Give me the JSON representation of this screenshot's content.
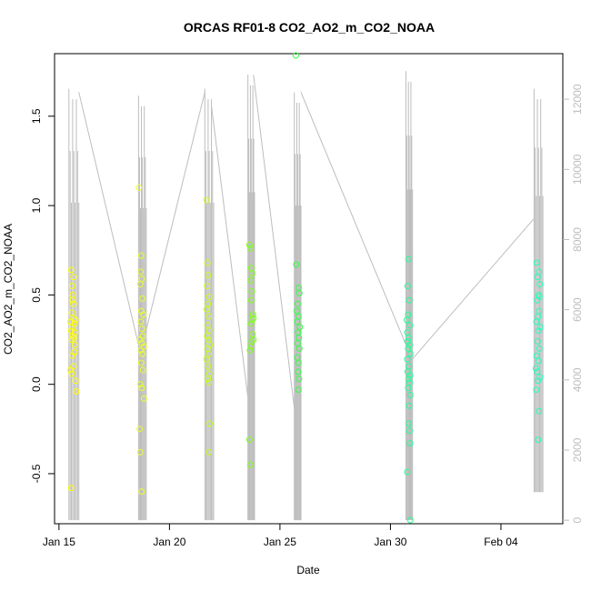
{
  "chart_data": {
    "type": "scatter",
    "title": "ORCAS RF01-8 CO2_AO2_m_CO2_NOAA",
    "xlabel": "Date",
    "ylabel": "CO2_AO2_m_CO2_NOAA",
    "x_ticks": [
      "Jan 15",
      "Jan 20",
      "Jan 25",
      "Jan 30",
      "Feb 04"
    ],
    "x_tick_days": [
      15,
      20,
      25,
      30,
      35
    ],
    "xlim_days": [
      14.8,
      37.8
    ],
    "y_ticks": [
      "-0.5",
      "0.0",
      "0.5",
      "1.0",
      "1.5"
    ],
    "y_tick_values": [
      -0.5,
      0.0,
      0.5,
      1.0,
      1.5
    ],
    "ylim": [
      -0.78,
      1.85
    ],
    "y2_ticks": [
      "0",
      "2000",
      "4000",
      "6000",
      "8000",
      "10000",
      "12000"
    ],
    "y2_tick_values": [
      0,
      2000,
      4000,
      6000,
      8000,
      10000,
      12000
    ],
    "y2lim": [
      -100,
      13300
    ],
    "grid": false,
    "legend": "none",
    "colors": {
      "series_flight_1": "#ffff00",
      "series_flight_2": "#eaff2c",
      "series_flight_3": "#c8ff1c",
      "series_flight_4": "#7fff1a",
      "series_flight_5": "#33ff44",
      "series_flight_6": "#22ff99",
      "series_flight_7": "#22ffbb",
      "altitude_line": "#bdbdbd"
    },
    "flights": [
      {
        "color": "#ffff00",
        "values": [
          {
            "x": 15.55,
            "y": 0.64
          },
          {
            "x": 15.6,
            "y": 0.55
          },
          {
            "x": 15.62,
            "y": 0.5
          },
          {
            "x": 15.65,
            "y": 0.45
          },
          {
            "x": 15.58,
            "y": 0.4
          },
          {
            "x": 15.66,
            "y": 0.37
          },
          {
            "x": 15.52,
            "y": 0.35
          },
          {
            "x": 15.7,
            "y": 0.34
          },
          {
            "x": 15.6,
            "y": 0.32
          },
          {
            "x": 15.55,
            "y": 0.3
          },
          {
            "x": 15.72,
            "y": 0.29
          },
          {
            "x": 15.62,
            "y": 0.27
          },
          {
            "x": 15.68,
            "y": 0.26
          },
          {
            "x": 15.58,
            "y": 0.25
          },
          {
            "x": 15.74,
            "y": 0.36
          },
          {
            "x": 15.7,
            "y": 0.18
          },
          {
            "x": 15.6,
            "y": 0.16
          },
          {
            "x": 15.65,
            "y": 0.1
          },
          {
            "x": 15.52,
            "y": 0.08
          },
          {
            "x": 15.58,
            "y": 0.06
          },
          {
            "x": 15.75,
            "y": 0.02
          },
          {
            "x": 15.78,
            "y": -0.04
          },
          {
            "x": 15.62,
            "y": 0.47
          },
          {
            "x": 15.66,
            "y": 0.6
          },
          {
            "x": 15.55,
            "y": -0.58
          },
          {
            "x": 15.72,
            "y": 0.22
          }
        ]
      },
      {
        "color": "#eaff2c",
        "values": [
          {
            "x": 18.62,
            "y": 1.1
          },
          {
            "x": 18.72,
            "y": 0.72
          },
          {
            "x": 18.7,
            "y": 0.63
          },
          {
            "x": 18.75,
            "y": 0.59
          },
          {
            "x": 18.68,
            "y": 0.56
          },
          {
            "x": 18.78,
            "y": 0.48
          },
          {
            "x": 18.72,
            "y": 0.41
          },
          {
            "x": 18.82,
            "y": 0.39
          },
          {
            "x": 18.7,
            "y": 0.35
          },
          {
            "x": 18.76,
            "y": 0.31
          },
          {
            "x": 18.8,
            "y": 0.27
          },
          {
            "x": 18.66,
            "y": 0.25
          },
          {
            "x": 18.74,
            "y": 0.23
          },
          {
            "x": 18.84,
            "y": 0.21
          },
          {
            "x": 18.7,
            "y": 0.19
          },
          {
            "x": 18.78,
            "y": 0.17
          },
          {
            "x": 18.72,
            "y": 0.12
          },
          {
            "x": 18.8,
            "y": 0.08
          },
          {
            "x": 18.68,
            "y": 0.0
          },
          {
            "x": 18.75,
            "y": -0.02
          },
          {
            "x": 18.85,
            "y": -0.08
          },
          {
            "x": 18.65,
            "y": -0.25
          },
          {
            "x": 18.68,
            "y": -0.38
          },
          {
            "x": 18.74,
            "y": -0.6
          }
        ]
      },
      {
        "color": "#c8ff1c",
        "values": [
          {
            "x": 21.68,
            "y": 1.03
          },
          {
            "x": 21.72,
            "y": 0.68
          },
          {
            "x": 21.75,
            "y": 0.61
          },
          {
            "x": 21.7,
            "y": 0.55
          },
          {
            "x": 21.8,
            "y": 0.49
          },
          {
            "x": 21.74,
            "y": 0.45
          },
          {
            "x": 21.68,
            "y": 0.42
          },
          {
            "x": 21.78,
            "y": 0.38
          },
          {
            "x": 21.72,
            "y": 0.33
          },
          {
            "x": 21.8,
            "y": 0.3
          },
          {
            "x": 21.7,
            "y": 0.27
          },
          {
            "x": 21.76,
            "y": 0.25
          },
          {
            "x": 21.82,
            "y": 0.22
          },
          {
            "x": 21.72,
            "y": 0.2
          },
          {
            "x": 21.78,
            "y": 0.17
          },
          {
            "x": 21.68,
            "y": 0.14
          },
          {
            "x": 21.75,
            "y": 0.1
          },
          {
            "x": 21.8,
            "y": 0.06
          },
          {
            "x": 21.74,
            "y": 0.03
          },
          {
            "x": 21.78,
            "y": 0.01
          },
          {
            "x": 21.82,
            "y": -0.22
          },
          {
            "x": 21.78,
            "y": -0.38
          }
        ]
      },
      {
        "color": "#7fff1a",
        "values": [
          {
            "x": 23.62,
            "y": 0.78
          },
          {
            "x": 23.66,
            "y": 0.76
          },
          {
            "x": 23.7,
            "y": 0.65
          },
          {
            "x": 23.75,
            "y": 0.62
          },
          {
            "x": 23.68,
            "y": 0.58
          },
          {
            "x": 23.72,
            "y": 0.52
          },
          {
            "x": 23.7,
            "y": 0.47
          },
          {
            "x": 23.78,
            "y": 0.39
          },
          {
            "x": 23.8,
            "y": 0.37
          },
          {
            "x": 23.74,
            "y": 0.36
          },
          {
            "x": 23.7,
            "y": 0.34
          },
          {
            "x": 23.76,
            "y": 0.28
          },
          {
            "x": 23.8,
            "y": 0.25
          },
          {
            "x": 23.72,
            "y": 0.24
          },
          {
            "x": 23.68,
            "y": 0.21
          },
          {
            "x": 23.64,
            "y": 0.19
          },
          {
            "x": 23.62,
            "y": -0.31
          },
          {
            "x": 23.66,
            "y": -0.45
          }
        ]
      },
      {
        "color": "#33ff44",
        "values": [
          {
            "x": 25.72,
            "y": 1.84
          },
          {
            "x": 25.74,
            "y": 0.67
          },
          {
            "x": 25.85,
            "y": 0.54
          },
          {
            "x": 25.88,
            "y": 0.51
          },
          {
            "x": 25.8,
            "y": 0.45
          },
          {
            "x": 25.76,
            "y": 0.41
          },
          {
            "x": 25.84,
            "y": 0.38
          },
          {
            "x": 25.78,
            "y": 0.35
          },
          {
            "x": 25.9,
            "y": 0.32
          },
          {
            "x": 25.82,
            "y": 0.29
          },
          {
            "x": 25.86,
            "y": 0.26
          },
          {
            "x": 25.8,
            "y": 0.23
          },
          {
            "x": 25.88,
            "y": 0.2
          },
          {
            "x": 25.78,
            "y": 0.15
          },
          {
            "x": 25.84,
            "y": 0.12
          },
          {
            "x": 25.82,
            "y": 0.07
          },
          {
            "x": 25.86,
            "y": 0.03
          },
          {
            "x": 25.84,
            "y": -0.03
          }
        ]
      },
      {
        "color": "#22ff99",
        "values": [
          {
            "x": 30.82,
            "y": 0.7
          },
          {
            "x": 30.78,
            "y": 0.55
          },
          {
            "x": 30.85,
            "y": 0.47
          },
          {
            "x": 30.8,
            "y": 0.39
          },
          {
            "x": 30.74,
            "y": 0.36
          },
          {
            "x": 30.88,
            "y": 0.33
          },
          {
            "x": 30.76,
            "y": 0.29
          },
          {
            "x": 30.82,
            "y": 0.26
          },
          {
            "x": 30.78,
            "y": 0.24
          },
          {
            "x": 30.86,
            "y": 0.22
          },
          {
            "x": 30.8,
            "y": 0.2
          },
          {
            "x": 30.9,
            "y": 0.17
          },
          {
            "x": 30.76,
            "y": 0.14
          },
          {
            "x": 30.84,
            "y": 0.1
          },
          {
            "x": 30.78,
            "y": 0.07
          },
          {
            "x": 30.88,
            "y": 0.05
          },
          {
            "x": 30.82,
            "y": 0.03
          },
          {
            "x": 30.86,
            "y": 0.01
          },
          {
            "x": 30.8,
            "y": -0.02
          },
          {
            "x": 30.9,
            "y": -0.06
          },
          {
            "x": 30.84,
            "y": -0.12
          },
          {
            "x": 30.82,
            "y": -0.22
          },
          {
            "x": 30.86,
            "y": -0.26
          },
          {
            "x": 30.88,
            "y": -0.33
          },
          {
            "x": 30.76,
            "y": -0.49
          },
          {
            "x": 30.9,
            "y": -0.76
          }
        ]
      },
      {
        "color": "#22ffbb",
        "values": [
          {
            "x": 36.62,
            "y": 0.68
          },
          {
            "x": 36.72,
            "y": 0.63
          },
          {
            "x": 36.66,
            "y": 0.6
          },
          {
            "x": 36.76,
            "y": 0.56
          },
          {
            "x": 36.7,
            "y": 0.5
          },
          {
            "x": 36.74,
            "y": 0.49
          },
          {
            "x": 36.64,
            "y": 0.47
          },
          {
            "x": 36.72,
            "y": 0.41
          },
          {
            "x": 36.68,
            "y": 0.38
          },
          {
            "x": 36.6,
            "y": 0.35
          },
          {
            "x": 36.78,
            "y": 0.32
          },
          {
            "x": 36.7,
            "y": 0.3
          },
          {
            "x": 36.66,
            "y": 0.24
          },
          {
            "x": 36.74,
            "y": 0.2
          },
          {
            "x": 36.62,
            "y": 0.16
          },
          {
            "x": 36.7,
            "y": 0.13
          },
          {
            "x": 36.58,
            "y": 0.09
          },
          {
            "x": 36.64,
            "y": 0.07
          },
          {
            "x": 36.76,
            "y": 0.04
          },
          {
            "x": 36.68,
            "y": 0.02
          },
          {
            "x": 36.6,
            "y": -0.03
          },
          {
            "x": 36.72,
            "y": -0.15
          },
          {
            "x": 36.68,
            "y": -0.31
          }
        ]
      }
    ],
    "altitude_segments": [
      {
        "x_start": 15.45,
        "x_end": 15.9,
        "y2_min": 0,
        "y2_max": 12300
      },
      {
        "x_start": 18.6,
        "x_end": 18.95,
        "y2_min": 0,
        "y2_max": 12100
      },
      {
        "x_start": 21.6,
        "x_end": 22.0,
        "y2_min": 0,
        "y2_max": 12300
      },
      {
        "x_start": 23.55,
        "x_end": 23.85,
        "y2_min": 0,
        "y2_max": 12700
      },
      {
        "x_start": 25.65,
        "x_end": 25.95,
        "y2_min": 0,
        "y2_max": 12200
      },
      {
        "x_start": 30.7,
        "x_end": 31.0,
        "y2_min": 0,
        "y2_max": 12800
      },
      {
        "x_start": 36.5,
        "x_end": 36.9,
        "y2_min": 800,
        "y2_max": 12300
      }
    ],
    "altitude_transits": [
      {
        "x": 15.9,
        "y2": 12200
      },
      {
        "x": 18.6,
        "y2": 5000
      },
      {
        "x": 18.9,
        "y2": 5300
      },
      {
        "x": 21.6,
        "y2": 12200
      },
      {
        "x": 21.9,
        "y2": 11800
      },
      {
        "x": 23.55,
        "y2": 3500
      },
      {
        "x": 23.8,
        "y2": 12700
      },
      {
        "x": 25.65,
        "y2": 3200
      },
      {
        "x": 25.95,
        "y2": 12200
      },
      {
        "x": 30.7,
        "y2": 5000
      },
      {
        "x": 31.0,
        "y2": 4600
      },
      {
        "x": 36.5,
        "y2": 8600
      }
    ]
  }
}
